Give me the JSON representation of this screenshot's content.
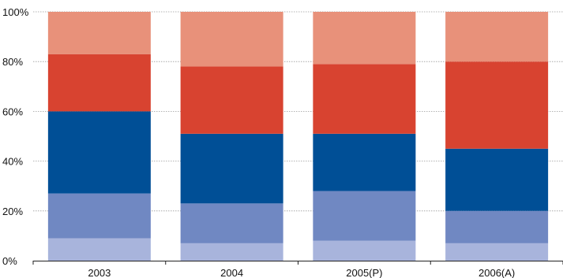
{
  "chart_data": {
    "type": "bar",
    "stacked": true,
    "normalized": true,
    "categories": [
      "2003",
      "2004",
      "2005(P)",
      "2006(A)"
    ],
    "series": [
      {
        "color": "#a8b4dc",
        "values": [
          9,
          7,
          8,
          7
        ]
      },
      {
        "color": "#7088c2",
        "values": [
          18,
          16,
          20,
          13
        ]
      },
      {
        "color": "#004f96",
        "values": [
          33,
          28,
          23,
          25
        ]
      },
      {
        "color": "#d84330",
        "values": [
          23,
          27,
          28,
          35
        ]
      },
      {
        "color": "#e8917a",
        "values": [
          17,
          22,
          21,
          20
        ]
      }
    ],
    "y_ticks": [
      "0%",
      "20%",
      "40%",
      "60%",
      "80%",
      "100%"
    ],
    "ylim": [
      0,
      100
    ],
    "grid": true,
    "legend": "none"
  }
}
